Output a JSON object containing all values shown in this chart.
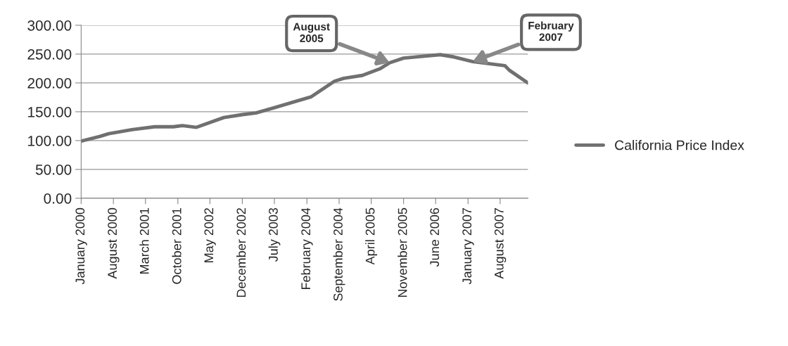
{
  "chart_data": {
    "type": "line",
    "x": [
      "2000-01",
      "2000-05",
      "2000-07",
      "2000-12",
      "2001-05",
      "2001-09",
      "2001-11",
      "2002-02",
      "2002-08",
      "2002-12",
      "2003-03",
      "2003-07",
      "2003-12",
      "2004-03",
      "2004-08",
      "2004-10",
      "2005-02",
      "2005-06",
      "2005-08",
      "2005-11",
      "2006-07",
      "2006-10",
      "2007-02",
      "2007-06",
      "2007-09",
      "2007-10",
      "2008-02"
    ],
    "series": [
      {
        "name": "California Price Index",
        "color": "#707070",
        "values": [
          99,
          107,
          112,
          119,
          124,
          124,
          126,
          123,
          140,
          145,
          148,
          157,
          169,
          176,
          203,
          208,
          213,
          225,
          235,
          243,
          249,
          245,
          237,
          233,
          230,
          222,
          200
        ]
      }
    ],
    "xlim": [
      "2000-01",
      "2008-02"
    ],
    "xticks": [
      {
        "value": "2000-01",
        "label": "January 2000"
      },
      {
        "value": "2000-08",
        "label": "August 2000"
      },
      {
        "value": "2001-03",
        "label": "March 2001"
      },
      {
        "value": "2001-10",
        "label": "October 2001"
      },
      {
        "value": "2002-05",
        "label": "May 2002"
      },
      {
        "value": "2002-12",
        "label": "December 2002"
      },
      {
        "value": "2003-07",
        "label": "July 2003"
      },
      {
        "value": "2004-02",
        "label": "February 2004"
      },
      {
        "value": "2004-09",
        "label": "September 2004"
      },
      {
        "value": "2005-04",
        "label": "April 2005"
      },
      {
        "value": "2005-11",
        "label": "November 2005"
      },
      {
        "value": "2006-06",
        "label": "June 2006"
      },
      {
        "value": "2007-01",
        "label": "January 2007"
      },
      {
        "value": "2007-08",
        "label": "August 2007"
      }
    ],
    "ylim": [
      0,
      300
    ],
    "yticks": [
      {
        "value": 0,
        "label": "0.00"
      },
      {
        "value": 50,
        "label": "50.00"
      },
      {
        "value": 100,
        "label": "100.00"
      },
      {
        "value": 150,
        "label": "150.00"
      },
      {
        "value": 200,
        "label": "200.00"
      },
      {
        "value": 250,
        "label": "250.00"
      },
      {
        "value": 300,
        "label": "300.00"
      }
    ],
    "annotations": [
      {
        "text": "August\n2005",
        "x": "2005-08",
        "y": 235
      },
      {
        "text": "February\n2007",
        "x": "2007-02",
        "y": 237
      }
    ],
    "grid": "y",
    "legend": "right",
    "marker": "none",
    "line_style": "solid"
  }
}
